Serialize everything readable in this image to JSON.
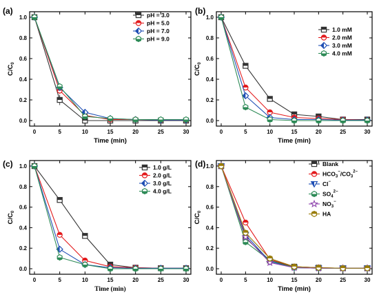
{
  "colors": {
    "black": "#333333",
    "red": "#e31a1c",
    "blue": "#1f4fb4",
    "green": "#2e8b57",
    "purple": "#8e44ad",
    "olive": "#9a7d0a"
  },
  "chart_data": [
    {
      "panel": "(a)",
      "type": "line",
      "xlabel": "Time (min)",
      "ylabel_main": "C/C",
      "ylabel_sub": "0",
      "xlim": [
        0,
        30
      ],
      "ylim": [
        0,
        1.0
      ],
      "xticks": [
        0,
        5,
        10,
        15,
        20,
        25,
        30
      ],
      "yticks": [
        0.0,
        0.2,
        0.4,
        0.6,
        0.8,
        1.0
      ],
      "x": [
        0,
        5,
        10,
        15,
        20,
        25,
        30
      ],
      "legend_position": "top-right",
      "series": [
        {
          "name": "pH = 3.0",
          "marker": "square",
          "color": "black",
          "values": [
            1.0,
            0.2,
            0.0,
            0.0,
            0.0,
            0.0,
            0.0
          ],
          "errors": [
            0.02,
            0.05,
            0.01,
            0.01,
            0.01,
            0.01,
            0.01
          ]
        },
        {
          "name": "pH = 5.0",
          "marker": "circle",
          "color": "red",
          "values": [
            1.0,
            0.29,
            0.05,
            0.01,
            0.01,
            0.005,
            0.005
          ],
          "errors": [
            0.02,
            0.03,
            0.02,
            0.01,
            0.01,
            0.01,
            0.01
          ]
        },
        {
          "name": "pH = 7.0",
          "marker": "diamond",
          "color": "blue",
          "values": [
            1.0,
            0.32,
            0.08,
            0.02,
            0.01,
            0.005,
            0.005
          ],
          "errors": [
            0.02,
            0.03,
            0.02,
            0.01,
            0.01,
            0.01,
            0.01
          ]
        },
        {
          "name": "pH = 9.0",
          "marker": "pentagon",
          "color": "green",
          "values": [
            1.0,
            0.33,
            0.04,
            0.02,
            0.01,
            0.01,
            0.01
          ],
          "errors": [
            0.02,
            0.03,
            0.02,
            0.01,
            0.01,
            0.01,
            0.01
          ]
        }
      ]
    },
    {
      "panel": "(b)",
      "type": "line",
      "xlabel": "Time (min)",
      "ylabel_main": "C/C",
      "ylabel_sub": "0",
      "xlim": [
        0,
        30
      ],
      "ylim": [
        0,
        1.0
      ],
      "xticks": [
        0,
        5,
        10,
        15,
        20,
        25,
        30
      ],
      "yticks": [
        0.0,
        0.2,
        0.4,
        0.6,
        0.8,
        1.0
      ],
      "x": [
        0,
        5,
        10,
        15,
        20,
        25,
        30
      ],
      "legend_position": "top-right",
      "series": [
        {
          "name": "1.0 mM",
          "marker": "square",
          "color": "black",
          "values": [
            1.0,
            0.53,
            0.21,
            0.06,
            0.04,
            0.01,
            0.01
          ],
          "errors": [
            0.02,
            0.02,
            0.02,
            0.01,
            0.01,
            0.01,
            0.01
          ]
        },
        {
          "name": "2.0 mM",
          "marker": "circle",
          "color": "red",
          "values": [
            1.0,
            0.32,
            0.08,
            0.03,
            0.02,
            0.01,
            0.005
          ],
          "errors": [
            0.02,
            0.02,
            0.02,
            0.01,
            0.01,
            0.01,
            0.01
          ]
        },
        {
          "name": "3.0 mM",
          "marker": "diamond",
          "color": "blue",
          "values": [
            1.0,
            0.24,
            0.03,
            0.01,
            0.01,
            0.005,
            0.005
          ],
          "errors": [
            0.02,
            0.02,
            0.01,
            0.01,
            0.01,
            0.01,
            0.01
          ]
        },
        {
          "name": "4.0 mM",
          "marker": "pentagon",
          "color": "green",
          "values": [
            1.0,
            0.13,
            0.01,
            0.0,
            0.0,
            0.0,
            0.0
          ],
          "errors": [
            0.02,
            0.02,
            0.01,
            0.01,
            0.01,
            0.01,
            0.01
          ]
        }
      ]
    },
    {
      "panel": "(c)",
      "type": "line",
      "xlabel": "Time (min)",
      "ylabel_main": "C/C",
      "ylabel_sub": "0",
      "xlim": [
        0,
        30
      ],
      "ylim": [
        0,
        1.0
      ],
      "xticks": [
        0,
        5,
        10,
        15,
        20,
        25,
        30
      ],
      "yticks": [
        0.0,
        0.2,
        0.4,
        0.6,
        0.8,
        1.0
      ],
      "x": [
        0,
        5,
        10,
        15,
        20,
        25,
        30
      ],
      "legend_position": "top-right",
      "series": [
        {
          "name": "1.0 g/L",
          "marker": "square",
          "color": "black",
          "values": [
            1.0,
            0.67,
            0.32,
            0.04,
            0.01,
            0.005,
            0.005
          ],
          "errors": [
            0.02,
            0.02,
            0.02,
            0.01,
            0.01,
            0.01,
            0.01
          ]
        },
        {
          "name": "2.0 g/L",
          "marker": "circle",
          "color": "red",
          "values": [
            1.0,
            0.33,
            0.08,
            0.02,
            0.01,
            0.005,
            0.005
          ],
          "errors": [
            0.02,
            0.02,
            0.02,
            0.01,
            0.01,
            0.01,
            0.01
          ]
        },
        {
          "name": "3.0 g/L",
          "marker": "diamond",
          "color": "blue",
          "values": [
            1.0,
            0.19,
            0.04,
            0.01,
            0.005,
            0.005,
            0.005
          ],
          "errors": [
            0.02,
            0.02,
            0.01,
            0.01,
            0.01,
            0.01,
            0.01
          ]
        },
        {
          "name": "4.0 g/L",
          "marker": "pentagon",
          "color": "green",
          "values": [
            1.0,
            0.11,
            0.04,
            0.0,
            0.0,
            0.0,
            0.0
          ],
          "errors": [
            0.02,
            0.02,
            0.01,
            0.01,
            0.01,
            0.01,
            0.01
          ]
        }
      ]
    },
    {
      "panel": "(d)",
      "type": "line",
      "xlabel": "Time (min)",
      "ylabel_main": "C/C",
      "ylabel_sub": "0",
      "xlim": [
        0,
        30
      ],
      "ylim": [
        0,
        1.0
      ],
      "xticks": [
        0,
        5,
        10,
        15,
        20,
        25,
        30
      ],
      "yticks": [
        0.0,
        0.2,
        0.4,
        0.6,
        0.8,
        1.0
      ],
      "x": [
        0,
        5,
        10,
        15,
        20,
        25,
        30
      ],
      "legend_position": "top-right",
      "series": [
        {
          "name": "Blank",
          "marker": "square",
          "color": "black",
          "values": [
            1.0,
            0.3,
            0.08,
            0.02,
            0.01,
            0.005,
            0.005
          ],
          "errors": [
            0.02,
            0.02,
            0.02,
            0.01,
            0.01,
            0.01,
            0.01
          ]
        },
        {
          "name": "HCO3−/CO32−",
          "marker": "circle",
          "color": "red",
          "values": [
            1.0,
            0.45,
            0.09,
            0.02,
            0.01,
            0.005,
            0.005
          ],
          "errors": [
            0.02,
            0.02,
            0.02,
            0.01,
            0.01,
            0.01,
            0.01
          ]
        },
        {
          "name": "Cl−",
          "marker": "triangle-down",
          "color": "blue",
          "values": [
            1.0,
            0.33,
            0.07,
            0.01,
            0.005,
            0.005,
            0.005
          ],
          "errors": [
            0.02,
            0.02,
            0.02,
            0.01,
            0.01,
            0.01,
            0.01
          ]
        },
        {
          "name": "SO42−",
          "marker": "pentagon",
          "color": "green",
          "values": [
            1.0,
            0.26,
            0.08,
            0.01,
            0.005,
            0.005,
            0.005
          ],
          "errors": [
            0.02,
            0.02,
            0.02,
            0.01,
            0.01,
            0.01,
            0.01
          ]
        },
        {
          "name": "NO3−",
          "marker": "star",
          "color": "purple",
          "values": [
            1.0,
            0.31,
            0.06,
            0.01,
            0.005,
            0.005,
            0.005
          ],
          "errors": [
            0.02,
            0.02,
            0.02,
            0.01,
            0.01,
            0.01,
            0.01
          ]
        },
        {
          "name": "HA",
          "marker": "pentagon-up",
          "color": "olive",
          "values": [
            1.0,
            0.35,
            0.1,
            0.02,
            0.01,
            0.005,
            0.005
          ],
          "errors": [
            0.02,
            0.02,
            0.02,
            0.01,
            0.01,
            0.01,
            0.01
          ]
        }
      ]
    }
  ]
}
